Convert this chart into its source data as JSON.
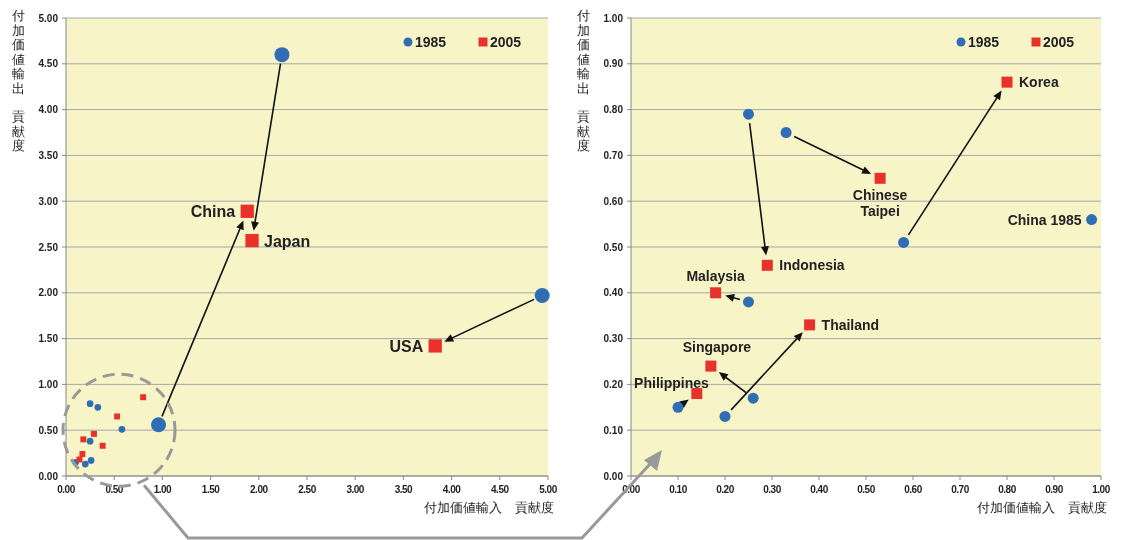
{
  "chart_data": [
    {
      "type": "bubble",
      "xlabel": "付加価値輸入　貢献度",
      "ylabel": "付加価値輸出貢献度",
      "xlim": [
        0,
        5
      ],
      "ylim": [
        0,
        5
      ],
      "xticks": [
        {
          "value": 0,
          "label": "0.00"
        },
        {
          "value": 0.5,
          "label": "0.50"
        },
        {
          "value": 1,
          "label": "1.00"
        },
        {
          "value": 1.5,
          "label": "1.50"
        },
        {
          "value": 2,
          "label": "2.00"
        },
        {
          "value": 2.5,
          "label": "2.50"
        },
        {
          "value": 3,
          "label": "3.00"
        },
        {
          "value": 3.5,
          "label": "3.50"
        },
        {
          "value": 4,
          "label": "4.00"
        },
        {
          "value": 4.5,
          "label": "4.50"
        },
        {
          "value": 5,
          "label": "5.00"
        }
      ],
      "yticks": [
        {
          "value": 0,
          "label": "0.00"
        },
        {
          "value": 0.5,
          "label": "0.50"
        },
        {
          "value": 1,
          "label": "1.00"
        },
        {
          "value": 1.5,
          "label": "1.50"
        },
        {
          "value": 2,
          "label": "2.00"
        },
        {
          "value": 2.5,
          "label": "2.50"
        },
        {
          "value": 3,
          "label": "3.00"
        },
        {
          "value": 3.5,
          "label": "3.50"
        },
        {
          "value": 4,
          "label": "4.00"
        },
        {
          "value": 4.5,
          "label": "4.50"
        },
        {
          "value": 5,
          "label": "5.00"
        }
      ],
      "grid": "y",
      "legend": "top right",
      "series": [
        {
          "name": "1985",
          "color": "#2f6db5",
          "marker": "circle",
          "x": [
            0.96,
            2.24,
            4.94,
            0.58,
            0.33,
            0.25,
            0.25,
            0.2,
            0.26,
            0.1
          ],
          "values": [
            0.56,
            4.6,
            1.97,
            0.51,
            0.75,
            0.79,
            0.38,
            0.13,
            0.17,
            0.15
          ],
          "sizes": [
            1,
            1,
            1,
            0.2,
            0.2,
            0.2,
            0.2,
            0.2,
            0.2,
            0.2
          ]
        },
        {
          "name": "2005",
          "color": "#e8312a",
          "marker": "square",
          "x": [
            1.88,
            1.93,
            3.83,
            0.8,
            0.53,
            0.29,
            0.18,
            0.38,
            0.17,
            0.14
          ],
          "values": [
            2.89,
            2.57,
            1.42,
            0.86,
            0.65,
            0.46,
            0.4,
            0.33,
            0.24,
            0.18
          ],
          "sizes": [
            1,
            1,
            1,
            0.2,
            0.2,
            0.2,
            0.2,
            0.2,
            0.2,
            0.2
          ]
        }
      ],
      "annotations": [
        {
          "text": "China",
          "x": 1.88,
          "y": 2.89
        },
        {
          "text": "Japan",
          "x": 1.93,
          "y": 2.57
        },
        {
          "text": "USA",
          "x": 3.83,
          "y": 1.42
        }
      ]
    },
    {
      "type": "scatter",
      "xlabel": "付加価値輸入　貢献度",
      "ylabel": "付加価値輸出貢献度",
      "xlim": [
        0,
        1
      ],
      "ylim": [
        0,
        1
      ],
      "xticks": [
        {
          "value": 0,
          "label": "0.00"
        },
        {
          "value": 0.1,
          "label": "0.10"
        },
        {
          "value": 0.2,
          "label": "0.20"
        },
        {
          "value": 0.3,
          "label": "0.30"
        },
        {
          "value": 0.4,
          "label": "0.40"
        },
        {
          "value": 0.5,
          "label": "0.50"
        },
        {
          "value": 0.6,
          "label": "0.60"
        },
        {
          "value": 0.7,
          "label": "0.70"
        },
        {
          "value": 0.8,
          "label": "0.80"
        },
        {
          "value": 0.9,
          "label": "0.90"
        },
        {
          "value": 1,
          "label": "1.00"
        }
      ],
      "yticks": [
        {
          "value": 0,
          "label": "0.00"
        },
        {
          "value": 0.1,
          "label": "0.10"
        },
        {
          "value": 0.2,
          "label": "0.20"
        },
        {
          "value": 0.3,
          "label": "0.30"
        },
        {
          "value": 0.4,
          "label": "0.40"
        },
        {
          "value": 0.5,
          "label": "0.50"
        },
        {
          "value": 0.6,
          "label": "0.60"
        },
        {
          "value": 0.7,
          "label": "0.70"
        },
        {
          "value": 0.8,
          "label": "0.80"
        },
        {
          "value": 0.9,
          "label": "0.90"
        },
        {
          "value": 1,
          "label": "1.00"
        }
      ],
      "grid": "y",
      "legend": "top right",
      "series": [
        {
          "name": "1985",
          "color": "#2f6db5",
          "marker": "circle",
          "x": [
            0.98,
            0.58,
            0.33,
            0.25,
            0.25,
            0.2,
            0.26,
            0.1
          ],
          "values": [
            0.56,
            0.51,
            0.75,
            0.79,
            0.38,
            0.13,
            0.17,
            0.15
          ]
        },
        {
          "name": "2005",
          "color": "#e8312a",
          "marker": "square",
          "x": [
            null,
            0.8,
            0.53,
            0.29,
            0.18,
            0.38,
            0.17,
            0.14
          ],
          "values": [
            null,
            0.86,
            0.65,
            0.46,
            0.4,
            0.33,
            0.24,
            0.18
          ]
        }
      ],
      "annotations": [
        {
          "text": "China 1985",
          "x": 0.98,
          "y": 0.56
        },
        {
          "text": "Korea",
          "x": 0.8,
          "y": 0.86
        },
        {
          "text": "Chinese Taipei",
          "x": 0.53,
          "y": 0.65
        },
        {
          "text": "Indonesia",
          "x": 0.29,
          "y": 0.46
        },
        {
          "text": "Malaysia",
          "x": 0.18,
          "y": 0.4
        },
        {
          "text": "Thailand",
          "x": 0.38,
          "y": 0.33
        },
        {
          "text": "Singapore",
          "x": 0.17,
          "y": 0.24
        },
        {
          "text": "Philippines",
          "x": 0.14,
          "y": 0.18
        }
      ]
    }
  ]
}
